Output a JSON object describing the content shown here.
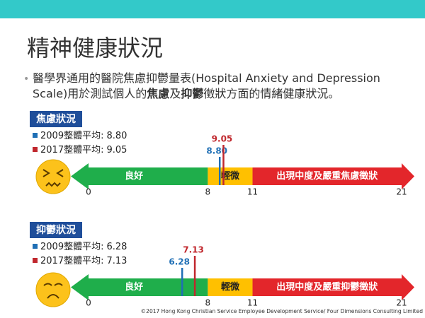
{
  "title": "精神健康狀況",
  "bullet": {
    "parts": [
      "醫學界通用的醫院焦慮抑鬱量表(Hospital Anxiety and Depression Scale)用於測試個人的",
      "焦慮",
      "及",
      "抑鬱",
      "徵狀方面的情緒健康狀況。"
    ]
  },
  "panels": [
    {
      "label": "焦慮狀況",
      "legend": [
        {
          "name": "2009整體平均:",
          "value": 8.8,
          "label": "8.80",
          "color": "#1f6fb5"
        },
        {
          "name": "2017整體平均:",
          "value": 9.05,
          "label": "9.05",
          "color": "#c0272d"
        }
      ],
      "scale": {
        "min": 0,
        "max": 21,
        "ticks": [
          0,
          8,
          11,
          21
        ],
        "segments": [
          {
            "label": "良好",
            "from": 0,
            "to": 8,
            "color": "#1fae4b"
          },
          {
            "label": "輕微",
            "from": 8,
            "to": 11,
            "color": "#ffc000"
          },
          {
            "label": "出現中度及嚴重焦慮徵狀",
            "from": 11,
            "to": 21,
            "color": "#e3262b"
          }
        ]
      }
    },
    {
      "label": "抑鬱狀況",
      "legend": [
        {
          "name": "2009整體平均:",
          "value": 6.28,
          "label": "6.28",
          "color": "#1f6fb5"
        },
        {
          "name": "2017整體平均:",
          "value": 7.13,
          "label": "7.13",
          "color": "#c0272d"
        }
      ],
      "scale": {
        "min": 0,
        "max": 21,
        "ticks": [
          0,
          8,
          11,
          21
        ],
        "segments": [
          {
            "label": "良好",
            "from": 0,
            "to": 8,
            "color": "#1fae4b"
          },
          {
            "label": "輕微",
            "from": 8,
            "to": 11,
            "color": "#ffc000"
          },
          {
            "label": "出現中度及嚴重抑鬱徵狀",
            "from": 11,
            "to": 21,
            "color": "#e3262b"
          }
        ]
      }
    }
  ],
  "footer": "©2017 Hong Kong Christian Service Employee Development Service/ Four Dimensions Consulting Limited"
}
